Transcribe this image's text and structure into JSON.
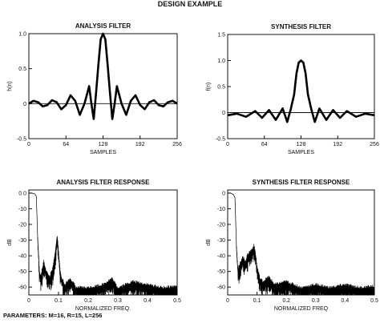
{
  "title": "DESIGN EXAMPLE",
  "parameters": "PARAMETERS: M=16, R=15, L=256",
  "chart_data": [
    {
      "id": "analysis-filter",
      "type": "line",
      "title": "ANALYSIS FILTER",
      "xlabel": "SAMPLES",
      "ylabel": "h(n)",
      "xlim": [
        0,
        256
      ],
      "ylim": [
        -0.5,
        1.0
      ],
      "xticks": [
        0,
        64,
        128,
        192,
        256
      ],
      "yticks": [
        -0.5,
        0,
        0.5,
        1.0
      ],
      "yticklabels": [
        "-0.5",
        "0",
        "0.5",
        "1.0"
      ],
      "series": [
        {
          "x": [
            0,
            8,
            16,
            24,
            32,
            40,
            48,
            56,
            64,
            72,
            80,
            88,
            96,
            104,
            108,
            112,
            116,
            120,
            124,
            128,
            132,
            136,
            140,
            144,
            148,
            152,
            160,
            168,
            176,
            184,
            192,
            200,
            208,
            216,
            224,
            232,
            240,
            248,
            256
          ],
          "y": [
            0,
            0.04,
            0.02,
            -0.04,
            -0.02,
            0.05,
            0.02,
            -0.08,
            -0.02,
            0.12,
            0.04,
            -0.16,
            0,
            0.25,
            0,
            -0.22,
            0.15,
            0.55,
            0.92,
            1.0,
            0.92,
            0.55,
            0.15,
            -0.22,
            0,
            0.25,
            0,
            -0.16,
            0.04,
            0.12,
            -0.02,
            -0.08,
            0.02,
            0.05,
            -0.02,
            -0.04,
            0.02,
            0.04,
            0
          ]
        }
      ]
    },
    {
      "id": "synthesis-filter",
      "type": "line",
      "title": "SYNTHESIS FILTER",
      "xlabel": "SAMPLES",
      "ylabel": "f(n)",
      "xlim": [
        0,
        256
      ],
      "ylim": [
        -0.5,
        1.5
      ],
      "xticks": [
        0,
        64,
        128,
        192,
        256
      ],
      "yticks": [
        -0.5,
        0,
        0.5,
        1.0,
        1.5
      ],
      "yticklabels": [
        "-0.5",
        "0",
        "0.5",
        "1.0",
        "1.5"
      ],
      "series": [
        {
          "x": [
            0,
            16,
            32,
            48,
            60,
            72,
            84,
            96,
            104,
            110,
            116,
            120,
            124,
            128,
            132,
            136,
            140,
            146,
            152,
            160,
            172,
            184,
            196,
            208,
            224,
            240,
            256
          ],
          "y": [
            -0.05,
            -0.02,
            -0.08,
            0.03,
            -0.1,
            0.05,
            -0.14,
            0.08,
            -0.18,
            0.06,
            0.35,
            0.75,
            0.96,
            1.0,
            0.96,
            0.75,
            0.35,
            0.06,
            -0.18,
            0.08,
            -0.14,
            0.05,
            -0.1,
            0.03,
            -0.08,
            -0.02,
            -0.05
          ]
        }
      ]
    },
    {
      "id": "analysis-response",
      "type": "line",
      "title": "ANALYSIS FILTER RESPONSE",
      "xlabel": "NORMALIZED FREQ.",
      "ylabel": "dB",
      "xlim": [
        0,
        0.5
      ],
      "ylim": [
        -65,
        2
      ],
      "xticks": [
        0,
        0.1,
        0.2,
        0.3,
        0.4,
        0.5
      ],
      "xticklabels": [
        "0",
        "0.1",
        "0.2",
        "0.3",
        "0.4",
        "0.5"
      ],
      "yticks": [
        0,
        -10,
        -20,
        -30,
        -40,
        -50,
        -60
      ],
      "yticklabels": [
        "0.0",
        "-10",
        "-20",
        "-30",
        "-40",
        "-50",
        "-60"
      ],
      "series": [
        {
          "x": [
            0,
            0.01,
            0.02,
            0.025,
            0.03,
            0.035,
            0.04,
            0.05,
            0.06,
            0.07,
            0.08,
            0.09,
            0.095,
            0.1,
            0.105,
            0.11,
            0.12,
            0.14,
            0.16,
            0.2,
            0.25,
            0.28,
            0.3,
            0.35,
            0.4,
            0.45,
            0.5
          ],
          "y": [
            0,
            0,
            -0.5,
            -2,
            -30,
            -50,
            -55,
            -45,
            -52,
            -55,
            -50,
            -38,
            -28,
            -38,
            -50,
            -55,
            -60,
            -56,
            -62,
            -62,
            -60,
            -56,
            -62,
            -58,
            -60,
            -62,
            -61
          ]
        }
      ]
    },
    {
      "id": "synthesis-response",
      "type": "line",
      "title": "SYNTHESIS FILTER RESPONSE",
      "xlabel": "NORMALIZED FREQ",
      "ylabel": "dB",
      "xlim": [
        0,
        0.5
      ],
      "ylim": [
        -65,
        2
      ],
      "xticks": [
        0,
        0.1,
        0.2,
        0.3,
        0.4,
        0.5
      ],
      "xticklabels": [
        "0",
        "0.1",
        "0.2",
        "0.3",
        "0.4",
        "0.5"
      ],
      "yticks": [
        0,
        -10,
        -20,
        -30,
        -40,
        -50,
        -60
      ],
      "yticklabels": [
        "0",
        "-10",
        "-20",
        "-30",
        "-40",
        "-50",
        "-60"
      ],
      "series": [
        {
          "x": [
            0,
            0.01,
            0.02,
            0.025,
            0.03,
            0.035,
            0.04,
            0.05,
            0.06,
            0.07,
            0.08,
            0.09,
            0.095,
            0.1,
            0.105,
            0.11,
            0.12,
            0.14,
            0.16,
            0.2,
            0.25,
            0.3,
            0.35,
            0.4,
            0.45,
            0.5
          ],
          "y": [
            0,
            0,
            -1,
            -3,
            -35,
            -50,
            -48,
            -42,
            -45,
            -40,
            -38,
            -35,
            -40,
            -48,
            -52,
            -56,
            -58,
            -55,
            -60,
            -58,
            -62,
            -60,
            -62,
            -60,
            -62,
            -61
          ]
        }
      ]
    }
  ]
}
